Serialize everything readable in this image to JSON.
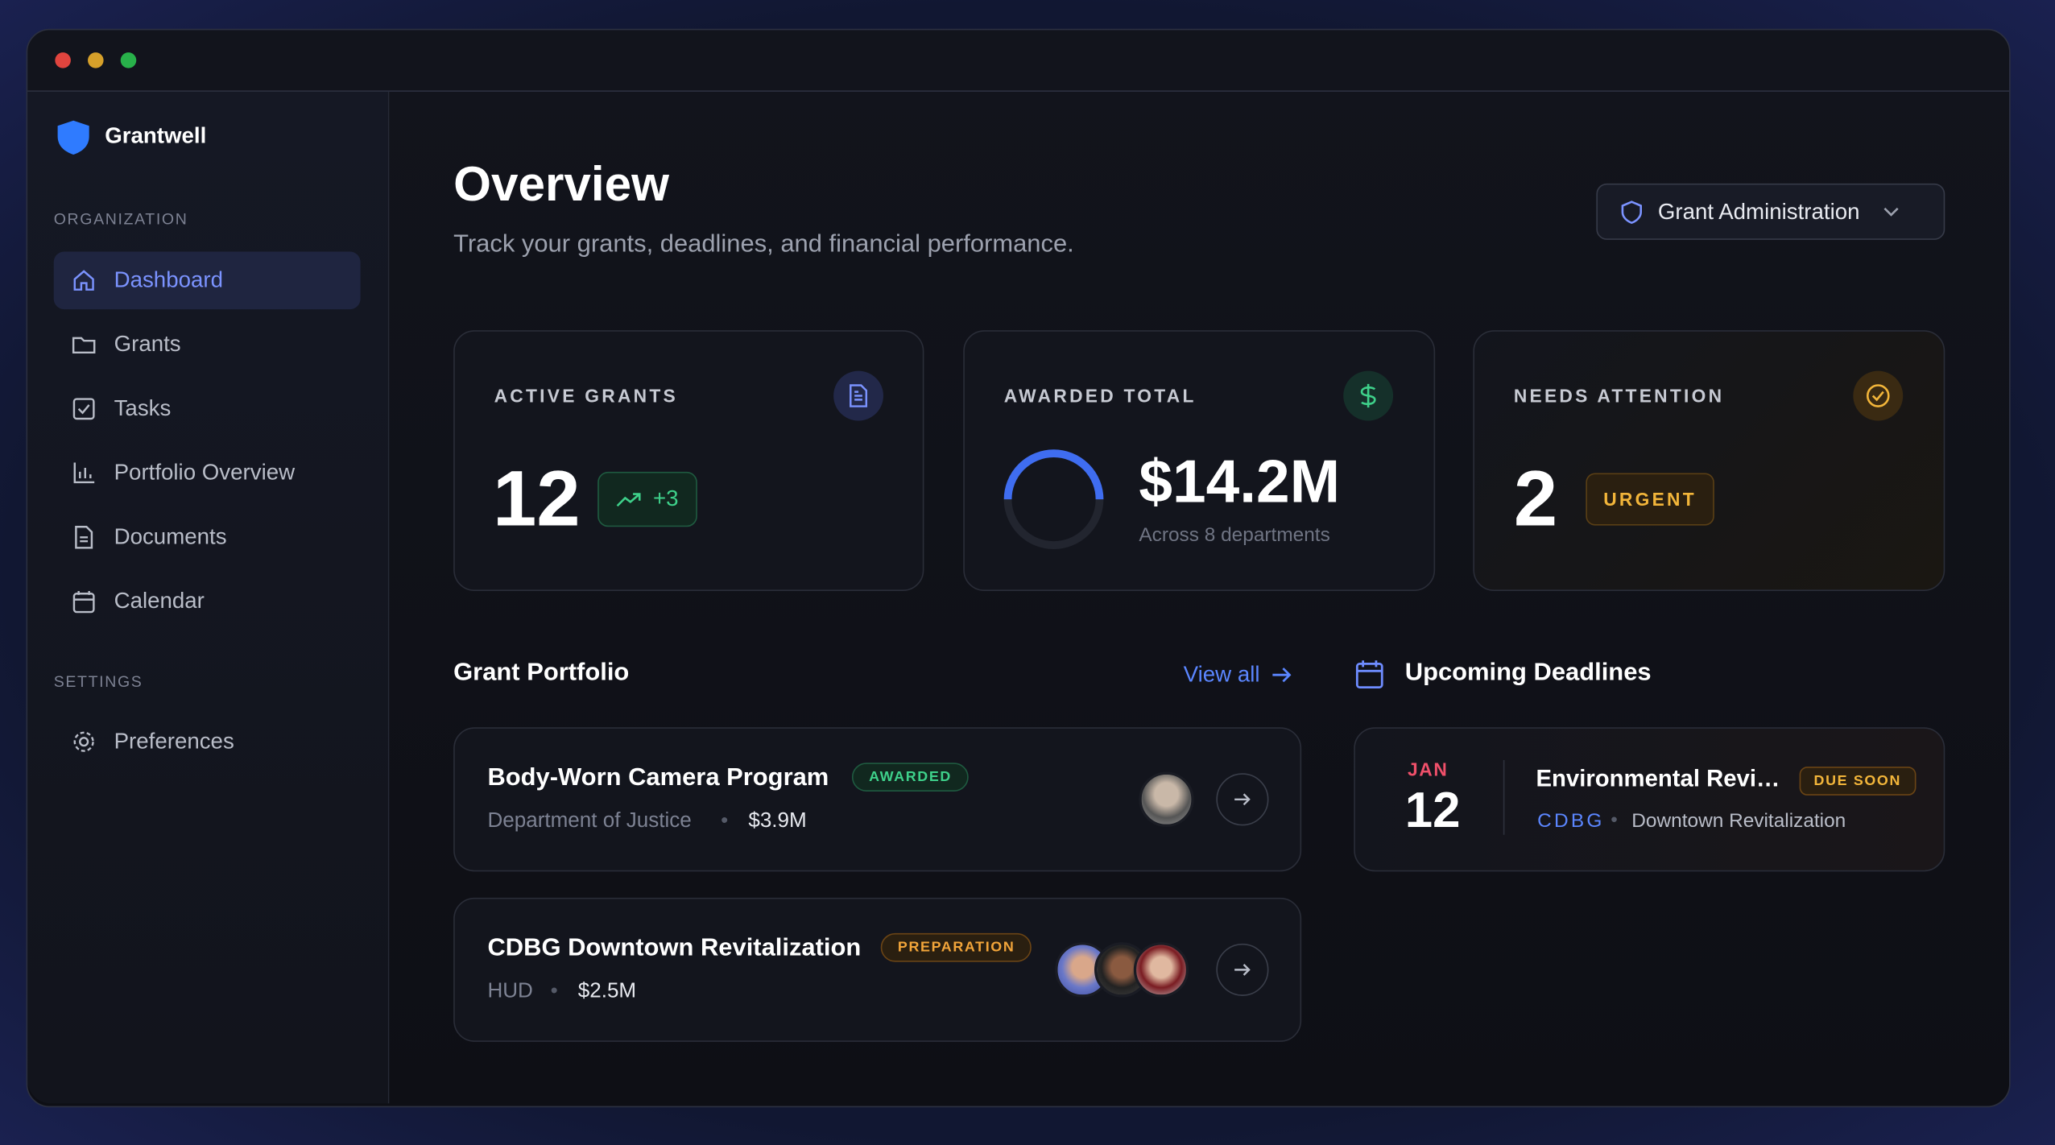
{
  "sidebar": {
    "brand": "Grantwell",
    "sections": [
      {
        "label": "ORGANIZATION",
        "items": [
          "Dashboard",
          "Grants",
          "Tasks",
          "Portfolio Overview",
          "Documents",
          "Calendar"
        ]
      },
      {
        "label": "SETTINGS",
        "items": [
          "Preferences"
        ]
      }
    ]
  },
  "header": {
    "title": "Overview",
    "subtitle": "Track your grants, deadlines, and financial performance.",
    "workspace": "Grant Administration"
  },
  "stats": [
    {
      "label": "ACTIVE GRANTS",
      "value": "12",
      "badge": "+3"
    },
    {
      "label": "AWARDED TOTAL",
      "value": "$14.2M",
      "note": "Across 8 departments"
    },
    {
      "label": "NEEDS ATTENTION",
      "value": "2",
      "badge": "URGENT"
    }
  ],
  "portfolio": {
    "title": "Grant Portfolio",
    "link": "View all",
    "items": [
      {
        "name": "Body-Worn Camera Program",
        "status": "AWARDED",
        "agency": "Department of Justice",
        "amount": "$3.9M"
      },
      {
        "name": "CDBG Downtown Revitalization",
        "status": "PREPARATION",
        "agency": "HUD",
        "amount": "$2.5M"
      }
    ]
  },
  "deadlines": {
    "title": "Upcoming Deadlines",
    "items": [
      {
        "month": "JAN",
        "day": "12",
        "title": "Environmental Revi…",
        "badge": "DUE SOON",
        "code": "CDBG",
        "project": "Downtown Revitalization"
      }
    ]
  }
}
